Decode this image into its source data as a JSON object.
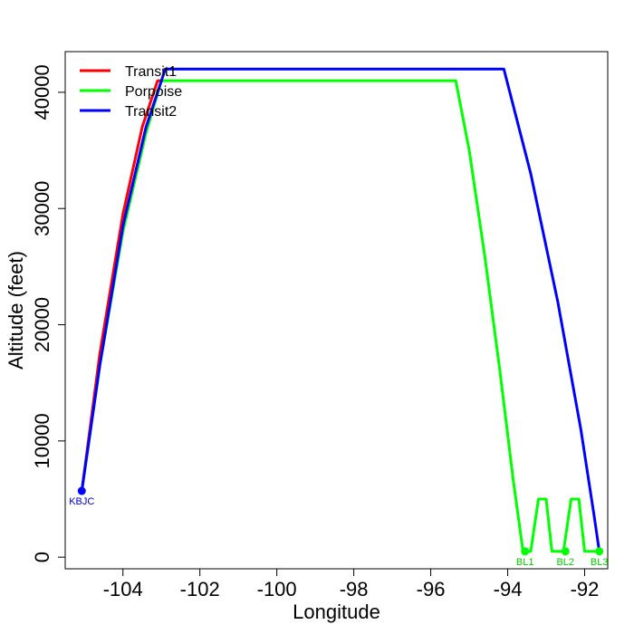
{
  "chart_data": {
    "type": "line",
    "title": "",
    "xlabel": "Longitude",
    "ylabel": "Altitude (feet)",
    "xlim": [
      -105.5,
      -91.4
    ],
    "ylim": [
      -1000,
      43500
    ],
    "x_ticks": [
      -104,
      -102,
      -100,
      -98,
      -96,
      -94,
      -92
    ],
    "y_ticks": [
      0,
      10000,
      20000,
      30000,
      40000
    ],
    "grid": false,
    "legend_position": "top-left",
    "series": [
      {
        "name": "Transit1",
        "color": "#ff0000",
        "points": [
          [
            -105.07,
            5700
          ],
          [
            -104.6,
            17500
          ],
          [
            -104.0,
            29500
          ],
          [
            -103.5,
            37000
          ],
          [
            -103.1,
            41000
          ],
          [
            -102.95,
            41000
          ]
        ]
      },
      {
        "name": "Porpoise",
        "color": "#00ff00",
        "points": [
          [
            -105.07,
            5700
          ],
          [
            -104.6,
            16500
          ],
          [
            -104.0,
            28000
          ],
          [
            -103.4,
            36500
          ],
          [
            -103.0,
            41000
          ],
          [
            -95.35,
            41000
          ],
          [
            -95.0,
            35000
          ],
          [
            -94.6,
            26000
          ],
          [
            -94.2,
            16000
          ],
          [
            -93.85,
            6500
          ],
          [
            -93.6,
            500
          ],
          [
            -93.4,
            500
          ],
          [
            -93.2,
            5000
          ],
          [
            -93.0,
            5000
          ],
          [
            -92.85,
            500
          ],
          [
            -92.55,
            500
          ],
          [
            -92.35,
            5000
          ],
          [
            -92.15,
            5000
          ],
          [
            -92.0,
            500
          ],
          [
            -91.62,
            500
          ]
        ]
      },
      {
        "name": "Transit2",
        "color": "#0000ff",
        "points": [
          [
            -105.07,
            5700
          ],
          [
            -104.6,
            16500
          ],
          [
            -104.0,
            28500
          ],
          [
            -103.4,
            37000
          ],
          [
            -102.9,
            42000
          ],
          [
            -94.1,
            42000
          ],
          [
            -93.4,
            33000
          ],
          [
            -92.7,
            22000
          ],
          [
            -92.1,
            11000
          ],
          [
            -91.75,
            3500
          ],
          [
            -91.62,
            500
          ]
        ]
      }
    ],
    "markers": [
      {
        "label": "KBJC",
        "x": -105.07,
        "y": 5700,
        "color": "#0000ff",
        "label_color": "#0000cc"
      },
      {
        "label": "BL1",
        "x": -93.55,
        "y": 500,
        "color": "#00ff00",
        "label_color": "#00cc00"
      },
      {
        "label": "BL2",
        "x": -92.5,
        "y": 500,
        "color": "#00ff00",
        "label_color": "#00cc00"
      },
      {
        "label": "BL3",
        "x": -91.62,
        "y": 500,
        "color": "#00ff00",
        "label_color": "#00cc00"
      }
    ]
  }
}
